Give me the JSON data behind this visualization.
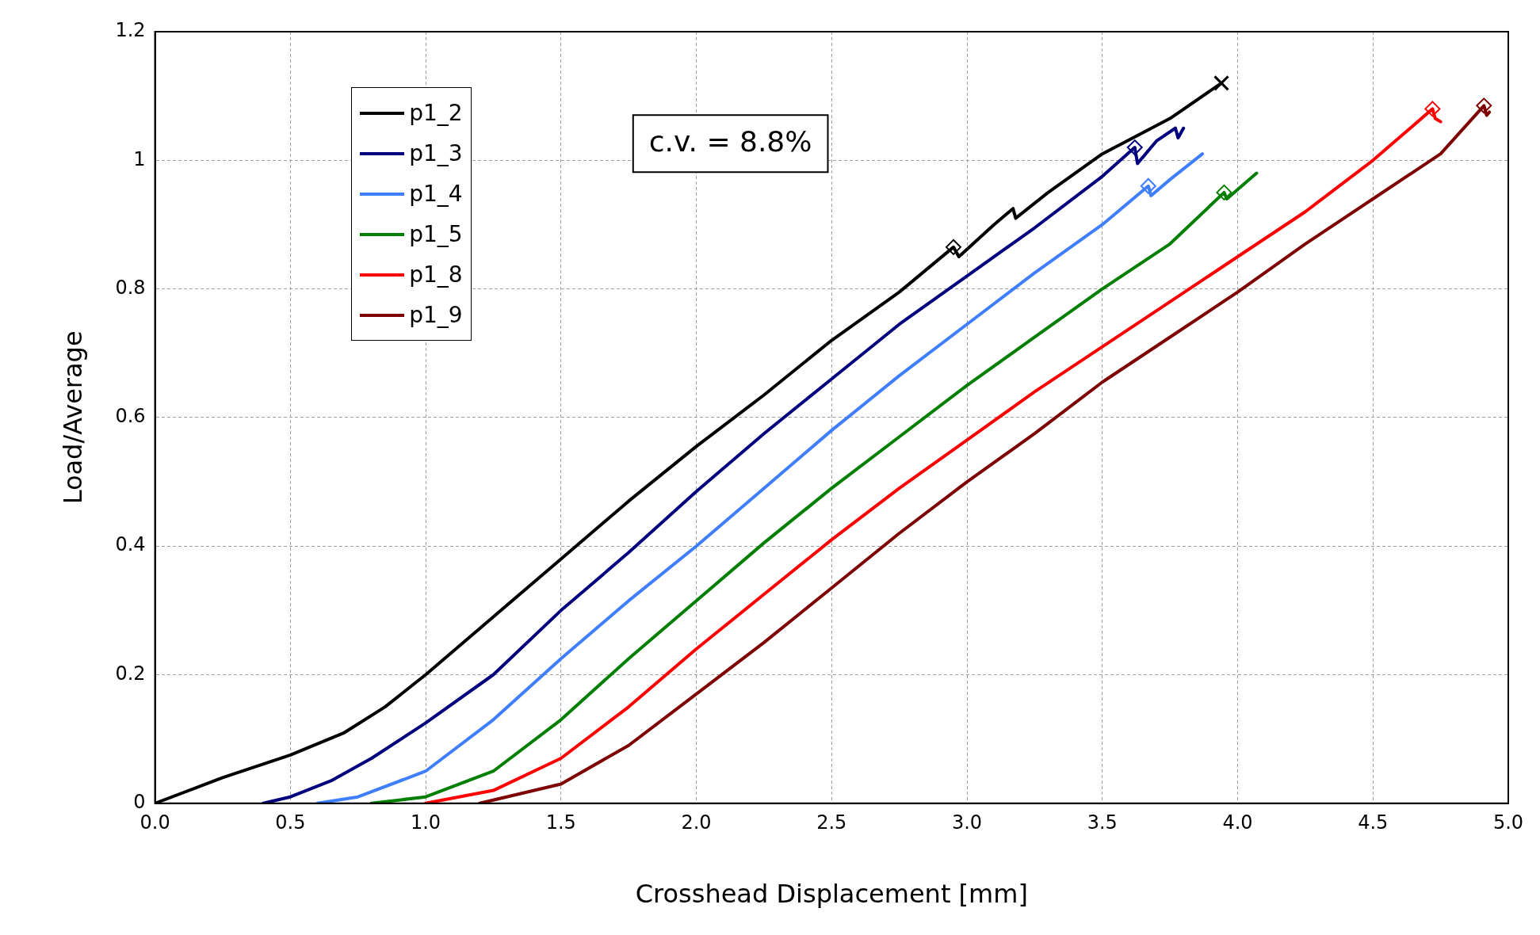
{
  "chart_data": {
    "type": "line",
    "xlabel": "Crosshead Displacement [mm]",
    "ylabel": "Load/Average",
    "annotations": [
      "c.v. = 8.8%"
    ],
    "xlim": [
      0,
      5
    ],
    "xticks": [
      {
        "value": 0,
        "label": "0.0"
      },
      {
        "value": 0.5,
        "label": "0.5"
      },
      {
        "value": 1,
        "label": "1.0"
      },
      {
        "value": 1.5,
        "label": "1.5"
      },
      {
        "value": 2,
        "label": "2.0"
      },
      {
        "value": 2.5,
        "label": "2.5"
      },
      {
        "value": 3,
        "label": "3.0"
      },
      {
        "value": 3.5,
        "label": "3.5"
      },
      {
        "value": 4,
        "label": "4.0"
      },
      {
        "value": 4.5,
        "label": "4.5"
      },
      {
        "value": 5,
        "label": "5.0"
      }
    ],
    "ylim": [
      0,
      1.2
    ],
    "yticks": [
      0,
      0.2,
      0.4,
      0.6,
      0.8,
      1,
      1.2
    ],
    "grid": true,
    "legend": "top left",
    "marker": "none",
    "line_style": "solid",
    "series": [
      {
        "name": "p1_2",
        "color": "#000000",
        "x": [
          0,
          0.25,
          0.5,
          0.7,
          0.85,
          1.0,
          1.25,
          1.5,
          1.75,
          2.0,
          2.25,
          2.5,
          2.75,
          2.95,
          2.97,
          3.1,
          3.17,
          3.18,
          3.3,
          3.5,
          3.75,
          3.94
        ],
        "values": [
          0,
          0.04,
          0.075,
          0.11,
          0.15,
          0.2,
          0.29,
          0.38,
          0.47,
          0.555,
          0.635,
          0.72,
          0.795,
          0.865,
          0.85,
          0.9,
          0.925,
          0.91,
          0.95,
          1.01,
          1.065,
          1.12
        ]
      },
      {
        "name": "p1_3",
        "color": "#00007f",
        "x": [
          0.4,
          0.5,
          0.65,
          0.8,
          1.0,
          1.25,
          1.5,
          1.75,
          2.0,
          2.25,
          2.5,
          2.75,
          3.0,
          3.25,
          3.5,
          3.62,
          3.63,
          3.7,
          3.77,
          3.78,
          3.8
        ],
        "values": [
          0,
          0.01,
          0.035,
          0.07,
          0.125,
          0.2,
          0.3,
          0.39,
          0.485,
          0.575,
          0.66,
          0.745,
          0.82,
          0.895,
          0.975,
          1.02,
          0.995,
          1.03,
          1.05,
          1.035,
          1.05
        ]
      },
      {
        "name": "p1_4",
        "color": "#3f7fff",
        "x": [
          0.6,
          0.75,
          1.0,
          1.25,
          1.5,
          1.75,
          2.0,
          2.25,
          2.5,
          2.75,
          3.0,
          3.25,
          3.5,
          3.67,
          3.68,
          3.75,
          3.87
        ],
        "values": [
          0,
          0.01,
          0.05,
          0.13,
          0.225,
          0.315,
          0.4,
          0.49,
          0.58,
          0.665,
          0.745,
          0.825,
          0.9,
          0.96,
          0.945,
          0.97,
          1.01
        ]
      },
      {
        "name": "p1_5",
        "color": "#007f00",
        "x": [
          0.8,
          1.0,
          1.25,
          1.5,
          1.75,
          2.0,
          2.25,
          2.5,
          2.75,
          3.0,
          3.25,
          3.5,
          3.75,
          3.95,
          3.96,
          4.07
        ],
        "values": [
          0,
          0.01,
          0.05,
          0.13,
          0.225,
          0.315,
          0.405,
          0.49,
          0.57,
          0.65,
          0.725,
          0.8,
          0.87,
          0.95,
          0.94,
          0.98
        ]
      },
      {
        "name": "p1_8",
        "color": "#ff0000",
        "x": [
          1.0,
          1.25,
          1.5,
          1.75,
          2.0,
          2.25,
          2.5,
          2.75,
          3.0,
          3.25,
          3.5,
          3.75,
          4.0,
          4.25,
          4.5,
          4.72,
          4.73,
          4.75
        ],
        "values": [
          0,
          0.02,
          0.07,
          0.15,
          0.24,
          0.325,
          0.41,
          0.49,
          0.565,
          0.64,
          0.71,
          0.78,
          0.85,
          0.92,
          1.0,
          1.08,
          1.065,
          1.06
        ]
      },
      {
        "name": "p1_9",
        "color": "#7f0000",
        "x": [
          1.2,
          1.5,
          1.75,
          2.0,
          2.25,
          2.5,
          2.75,
          3.0,
          3.25,
          3.5,
          3.75,
          4.0,
          4.25,
          4.5,
          4.75,
          4.91,
          4.92,
          4.93
        ],
        "values": [
          0,
          0.03,
          0.09,
          0.17,
          0.25,
          0.335,
          0.42,
          0.5,
          0.575,
          0.655,
          0.725,
          0.795,
          0.87,
          0.94,
          1.01,
          1.085,
          1.07,
          1.075
        ]
      },
      {
        "type": "scatter",
        "marker": "diamond",
        "x": [
          2.95,
          3.62,
          3.67,
          3.95,
          4.72,
          4.91
        ],
        "values": [
          0.865,
          1.02,
          0.96,
          0.95,
          1.08,
          1.085
        ],
        "colors": [
          "#000000",
          "#00007f",
          "#3f7fff",
          "#007f00",
          "#ff0000",
          "#7f0000"
        ]
      },
      {
        "type": "scatter",
        "marker": "cross",
        "color": "#000000",
        "x": [
          3.94
        ],
        "values": [
          1.12
        ]
      }
    ]
  }
}
